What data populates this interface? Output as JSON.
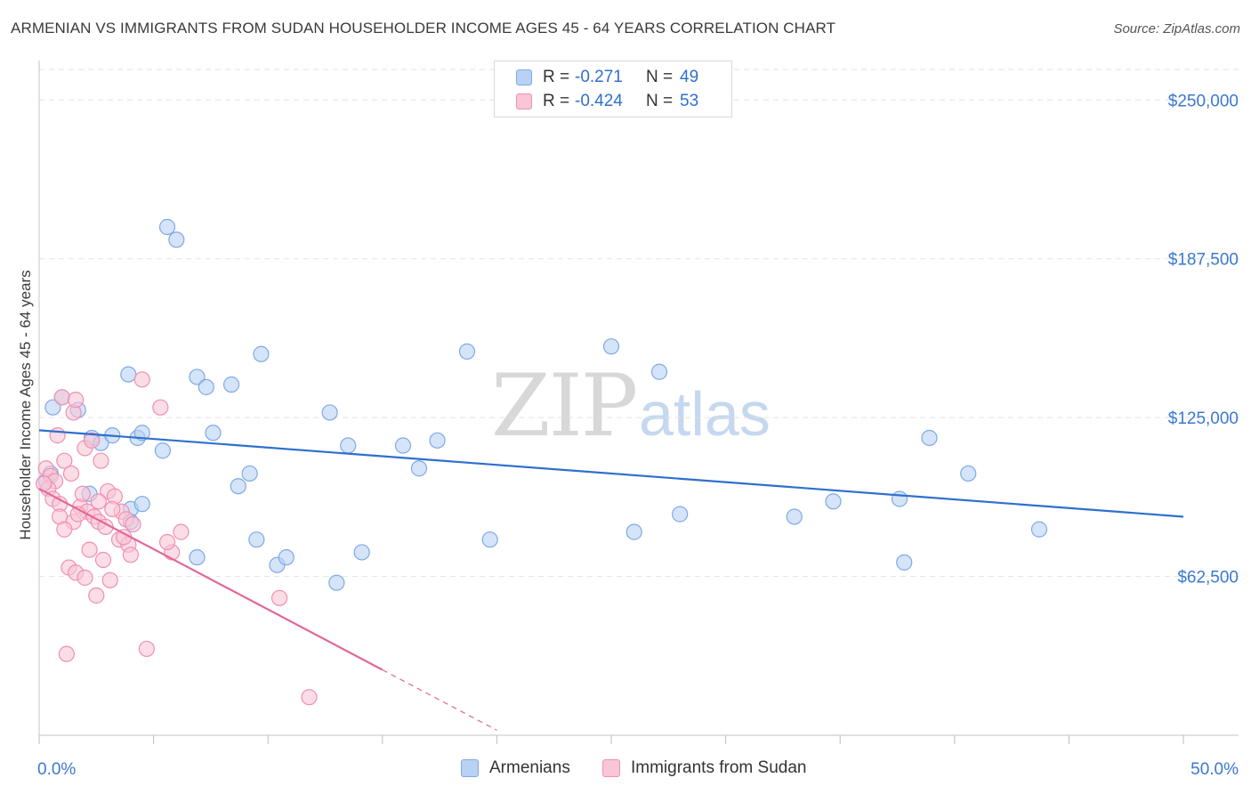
{
  "header": {
    "title": "ARMENIAN VS IMMIGRANTS FROM SUDAN HOUSEHOLDER INCOME AGES 45 - 64 YEARS CORRELATION CHART",
    "source": "Source: ZipAtlas.com"
  },
  "watermark": {
    "zip": "ZIP",
    "atlas": "atlas"
  },
  "legend_top": {
    "rows": [
      {
        "r_label": "R =",
        "r_value": "-0.271",
        "n_label": "N =",
        "n_value": "49",
        "color": "#7ea9e6",
        "fill": "#b9d2f3"
      },
      {
        "r_label": "R =",
        "r_value": "-0.424",
        "n_label": "N =",
        "n_value": "53",
        "color": "#f08fb0",
        "fill": "#f8c6d6"
      }
    ]
  },
  "legend_bottom": {
    "items": [
      {
        "label": "Armenians",
        "fill": "#b9d2f3",
        "color": "#7ea9e6"
      },
      {
        "label": "Immigrants from Sudan",
        "fill": "#f8c6d6",
        "color": "#f08fb0"
      }
    ]
  },
  "chart_data": {
    "type": "scatter",
    "title": "ARMENIAN VS IMMIGRANTS FROM SUDAN HOUSEHOLDER INCOME AGES 45 - 64 YEARS CORRELATION CHART",
    "xlabel": "",
    "ylabel": "Householder Income Ages 45 - 64 years",
    "xlim": [
      0,
      50
    ],
    "ylim": [
      0,
      262000
    ],
    "x_tick_labels": [
      "0.0%",
      "50.0%"
    ],
    "y_ticks": [
      62500,
      125000,
      187500,
      250000
    ],
    "y_tick_labels": [
      "$62,500",
      "$125,000",
      "$187,500",
      "$250,000"
    ],
    "grid": true,
    "series": [
      {
        "name": "Armenians",
        "color": "#7ea9e6",
        "fill": "#b9d2f3",
        "line_color": "#2f6fcf",
        "trend": {
          "x0": 0,
          "y0": 120000,
          "x1": 50,
          "y1": 86000,
          "dash_from_x": null
        },
        "points": [
          [
            1.0,
            133000
          ],
          [
            0.6,
            129000
          ],
          [
            1.7,
            128000
          ],
          [
            2.3,
            117000
          ],
          [
            2.7,
            115000
          ],
          [
            3.2,
            118000
          ],
          [
            3.9,
            142000
          ],
          [
            4.3,
            117000
          ],
          [
            4.5,
            119000
          ],
          [
            5.4,
            112000
          ],
          [
            5.6,
            200000
          ],
          [
            6.0,
            195000
          ],
          [
            6.9,
            141000
          ],
          [
            7.3,
            137000
          ],
          [
            7.6,
            119000
          ],
          [
            8.4,
            138000
          ],
          [
            8.7,
            98000
          ],
          [
            9.2,
            103000
          ],
          [
            9.5,
            77000
          ],
          [
            9.7,
            150000
          ],
          [
            10.4,
            67000
          ],
          [
            10.8,
            70000
          ],
          [
            12.7,
            127000
          ],
          [
            13.0,
            60000
          ],
          [
            13.5,
            114000
          ],
          [
            14.1,
            72000
          ],
          [
            15.9,
            114000
          ],
          [
            16.6,
            105000
          ],
          [
            17.4,
            116000
          ],
          [
            18.7,
            151000
          ],
          [
            19.7,
            77000
          ],
          [
            25.0,
            153000
          ],
          [
            26.0,
            80000
          ],
          [
            27.1,
            143000
          ],
          [
            28.0,
            87000
          ],
          [
            33.0,
            86000
          ],
          [
            34.7,
            92000
          ],
          [
            37.6,
            93000
          ],
          [
            37.8,
            68000
          ],
          [
            38.9,
            117000
          ],
          [
            40.6,
            103000
          ],
          [
            43.7,
            81000
          ],
          [
            0.3,
            100000
          ],
          [
            0.5,
            103000
          ],
          [
            2.2,
            95000
          ],
          [
            4.0,
            89000
          ],
          [
            4.5,
            91000
          ],
          [
            4.0,
            84000
          ],
          [
            6.9,
            70000
          ]
        ]
      },
      {
        "name": "Immigrants from Sudan",
        "color": "#f08fb0",
        "fill": "#f8c6d6",
        "line_color": "#e0689a",
        "trend": {
          "x0": 0,
          "y0": 97000,
          "x1": 20,
          "y1": 2000,
          "dash_from_x": 15
        },
        "points": [
          [
            0.3,
            105000
          ],
          [
            0.5,
            102000
          ],
          [
            0.7,
            100000
          ],
          [
            0.4,
            97000
          ],
          [
            0.6,
            93000
          ],
          [
            0.9,
            91000
          ],
          [
            0.8,
            118000
          ],
          [
            1.1,
            108000
          ],
          [
            1.4,
            103000
          ],
          [
            1.0,
            133000
          ],
          [
            1.5,
            127000
          ],
          [
            1.6,
            132000
          ],
          [
            2.0,
            113000
          ],
          [
            2.3,
            116000
          ],
          [
            2.7,
            108000
          ],
          [
            3.0,
            96000
          ],
          [
            3.3,
            94000
          ],
          [
            1.8,
            90000
          ],
          [
            2.1,
            88000
          ],
          [
            2.4,
            86000
          ],
          [
            2.6,
            84000
          ],
          [
            2.9,
            82000
          ],
          [
            3.6,
            88000
          ],
          [
            3.8,
            85000
          ],
          [
            4.1,
            83000
          ],
          [
            3.5,
            77000
          ],
          [
            3.9,
            75000
          ],
          [
            4.0,
            71000
          ],
          [
            2.2,
            73000
          ],
          [
            2.8,
            69000
          ],
          [
            1.3,
            66000
          ],
          [
            1.6,
            64000
          ],
          [
            2.0,
            62000
          ],
          [
            2.5,
            55000
          ],
          [
            3.1,
            61000
          ],
          [
            4.5,
            140000
          ],
          [
            5.3,
            129000
          ],
          [
            6.2,
            80000
          ],
          [
            5.8,
            72000
          ],
          [
            5.6,
            76000
          ],
          [
            1.2,
            32000
          ],
          [
            4.7,
            34000
          ],
          [
            10.5,
            54000
          ],
          [
            11.8,
            15000
          ],
          [
            0.2,
            99000
          ],
          [
            0.9,
            86000
          ],
          [
            1.5,
            84000
          ],
          [
            1.1,
            81000
          ],
          [
            3.2,
            89000
          ],
          [
            2.6,
            92000
          ],
          [
            1.9,
            95000
          ],
          [
            3.7,
            78000
          ],
          [
            1.7,
            87000
          ]
        ]
      }
    ]
  }
}
